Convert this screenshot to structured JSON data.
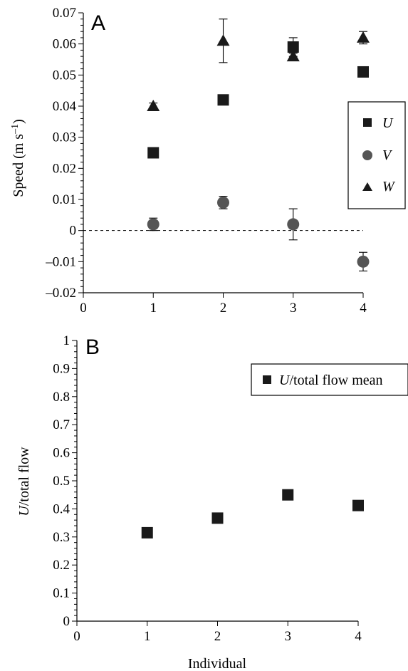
{
  "chart_data": [
    {
      "panel": "A",
      "type": "scatter",
      "ylabel_main": "Speed (m s",
      "ylabel_sup": "–1",
      "ylabel_close": ")",
      "xlabel": "",
      "xlim": [
        0,
        4
      ],
      "ylim": [
        -0.02,
        0.07
      ],
      "x_ticks": [
        "0",
        "1",
        "2",
        "3",
        "4"
      ],
      "y_ticks": [
        "–0.02",
        "–0.01",
        "0",
        "0.01",
        "0.02",
        "0.03",
        "0.04",
        "0.05",
        "0.06",
        "0.07"
      ],
      "zero_line": true,
      "legend_position": "right",
      "series": [
        {
          "name": "U",
          "marker": "square",
          "points": [
            {
              "x": 1,
              "y": 0.025,
              "err": 0.0
            },
            {
              "x": 2,
              "y": 0.042,
              "err": 0.001
            },
            {
              "x": 3,
              "y": 0.059,
              "err": 0.003
            },
            {
              "x": 4,
              "y": 0.051,
              "err": 0.0
            }
          ]
        },
        {
          "name": "V",
          "marker": "circle",
          "points": [
            {
              "x": 1,
              "y": 0.002,
              "err": 0.002
            },
            {
              "x": 2,
              "y": 0.009,
              "err": 0.002
            },
            {
              "x": 3,
              "y": 0.002,
              "err": 0.005
            },
            {
              "x": 4,
              "y": -0.01,
              "err": 0.003
            }
          ]
        },
        {
          "name": "W",
          "marker": "triangle",
          "points": [
            {
              "x": 1,
              "y": 0.04,
              "err": 0.001
            },
            {
              "x": 2,
              "y": 0.061,
              "err": 0.007
            },
            {
              "x": 3,
              "y": 0.056,
              "err": 0.001
            },
            {
              "x": 4,
              "y": 0.062,
              "err": 0.002
            }
          ]
        }
      ]
    },
    {
      "panel": "B",
      "type": "scatter",
      "ylabel_italic": "U",
      "ylabel_rest": "/total flow",
      "xlabel": "Individual",
      "xlim": [
        0,
        4
      ],
      "ylim": [
        0,
        1
      ],
      "x_ticks": [
        "0",
        "1",
        "2",
        "3",
        "4"
      ],
      "y_ticks": [
        "0",
        "0.1",
        "0.2",
        "0.3",
        "0.4",
        "0.5",
        "0.6",
        "0.7",
        "0.8",
        "0.9",
        "1"
      ],
      "legend_position": "top-right",
      "series": [
        {
          "name_italic": "U",
          "name_rest": "/total flow mean",
          "marker": "square",
          "points": [
            {
              "x": 1,
              "y": 0.315
            },
            {
              "x": 2,
              "y": 0.367
            },
            {
              "x": 3,
              "y": 0.45
            },
            {
              "x": 4,
              "y": 0.412
            }
          ]
        }
      ]
    }
  ]
}
